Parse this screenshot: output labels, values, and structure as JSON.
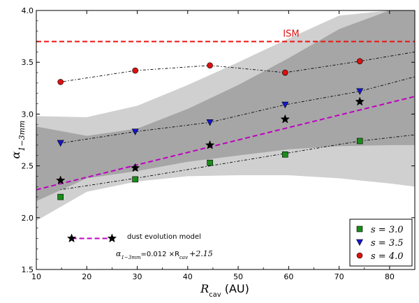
{
  "chart_data": {
    "type": "scatter",
    "title": "",
    "xlabel": "R",
    "xlabel_sub": "cav",
    "xlabel_unit": "(AU)",
    "ylabel": "α",
    "ylabel_sub": "1−3mm",
    "xlim": [
      10,
      85
    ],
    "ylim": [
      1.5,
      4.0
    ],
    "x_ticks": [
      "10",
      "20",
      "30",
      "40",
      "50",
      "60",
      "70",
      "80"
    ],
    "y_ticks": [
      "1.5",
      "2.0",
      "2.5",
      "3.0",
      "3.5",
      "4.0"
    ],
    "reference_line": {
      "label": "ISM",
      "y": 3.7,
      "color": "#ee1111"
    },
    "bands": [
      {
        "name": "outer band",
        "x": [
          10,
          20,
          30,
          40,
          50,
          60,
          70,
          80,
          85
        ],
        "lower": [
          1.97,
          2.25,
          2.35,
          2.4,
          2.41,
          2.41,
          2.38,
          2.33,
          2.3
        ],
        "upper": [
          2.98,
          2.97,
          3.08,
          3.28,
          3.5,
          3.73,
          3.95,
          4.0,
          4.0
        ],
        "color": "#d0d0d0"
      },
      {
        "name": "inner band",
        "x": [
          10,
          20,
          30,
          40,
          50,
          60,
          70,
          80,
          85
        ],
        "lower": [
          2.16,
          2.38,
          2.45,
          2.54,
          2.6,
          2.66,
          2.69,
          2.7,
          2.7
        ],
        "upper": [
          2.88,
          2.79,
          2.86,
          3.05,
          3.28,
          3.54,
          3.82,
          4.0,
          4.0
        ],
        "color": "#a6a6a6"
      }
    ],
    "series": [
      {
        "name": "s = 3.0",
        "legend": "s = 3.0",
        "marker": "square",
        "color": "#1a8c1a",
        "x": [
          14.8,
          29.6,
          44.4,
          59.3,
          74.1
        ],
        "y": [
          2.2,
          2.37,
          2.53,
          2.61,
          2.74
        ],
        "trend": [
          [
            14.8,
            2.27
          ],
          [
            29.6,
            2.38
          ],
          [
            44.4,
            2.5
          ],
          [
            59.3,
            2.62
          ],
          [
            74.1,
            2.74
          ],
          [
            85,
            2.8
          ]
        ]
      },
      {
        "name": "s = 3.5",
        "legend": "s = 3.5",
        "marker": "triangle-down",
        "color": "#1515d0",
        "x": [
          14.8,
          29.6,
          44.4,
          59.3,
          74.1
        ],
        "y": [
          2.72,
          2.83,
          2.92,
          3.09,
          3.22
        ],
        "trend": [
          [
            14.8,
            2.72
          ],
          [
            29.6,
            2.83
          ],
          [
            44.4,
            2.92
          ],
          [
            59.3,
            3.09
          ],
          [
            74.1,
            3.22
          ],
          [
            85,
            3.36
          ]
        ]
      },
      {
        "name": "s = 4.0",
        "legend": "s = 4.0",
        "marker": "circle",
        "color": "#dd1111",
        "x": [
          14.8,
          29.6,
          44.4,
          59.3,
          74.1
        ],
        "y": [
          3.31,
          3.42,
          3.47,
          3.4,
          3.51
        ],
        "trend": [
          [
            14.8,
            3.31
          ],
          [
            29.6,
            3.42
          ],
          [
            44.4,
            3.47
          ],
          [
            59.3,
            3.4
          ],
          [
            74.1,
            3.51
          ],
          [
            85,
            3.6
          ]
        ]
      },
      {
        "name": "dust evolution model",
        "marker": "star",
        "color": "#000000",
        "x": [
          14.8,
          29.6,
          44.4,
          59.3,
          74.1
        ],
        "y": [
          2.36,
          2.48,
          2.7,
          2.95,
          3.12
        ]
      }
    ],
    "fit_line": {
      "slope": 0.012,
      "intercept": 2.15,
      "color": "#c000c0",
      "x_range": [
        10,
        85
      ]
    },
    "annotation": {
      "model_label": "dust evolution model",
      "formula_lhs": "α",
      "formula_lhs_sub": "1−3mm",
      "formula_mid": "=0.012 ×R",
      "formula_mid_sub": "cav",
      "formula_rhs": "+2.15"
    },
    "legend_position": "lower-right"
  }
}
